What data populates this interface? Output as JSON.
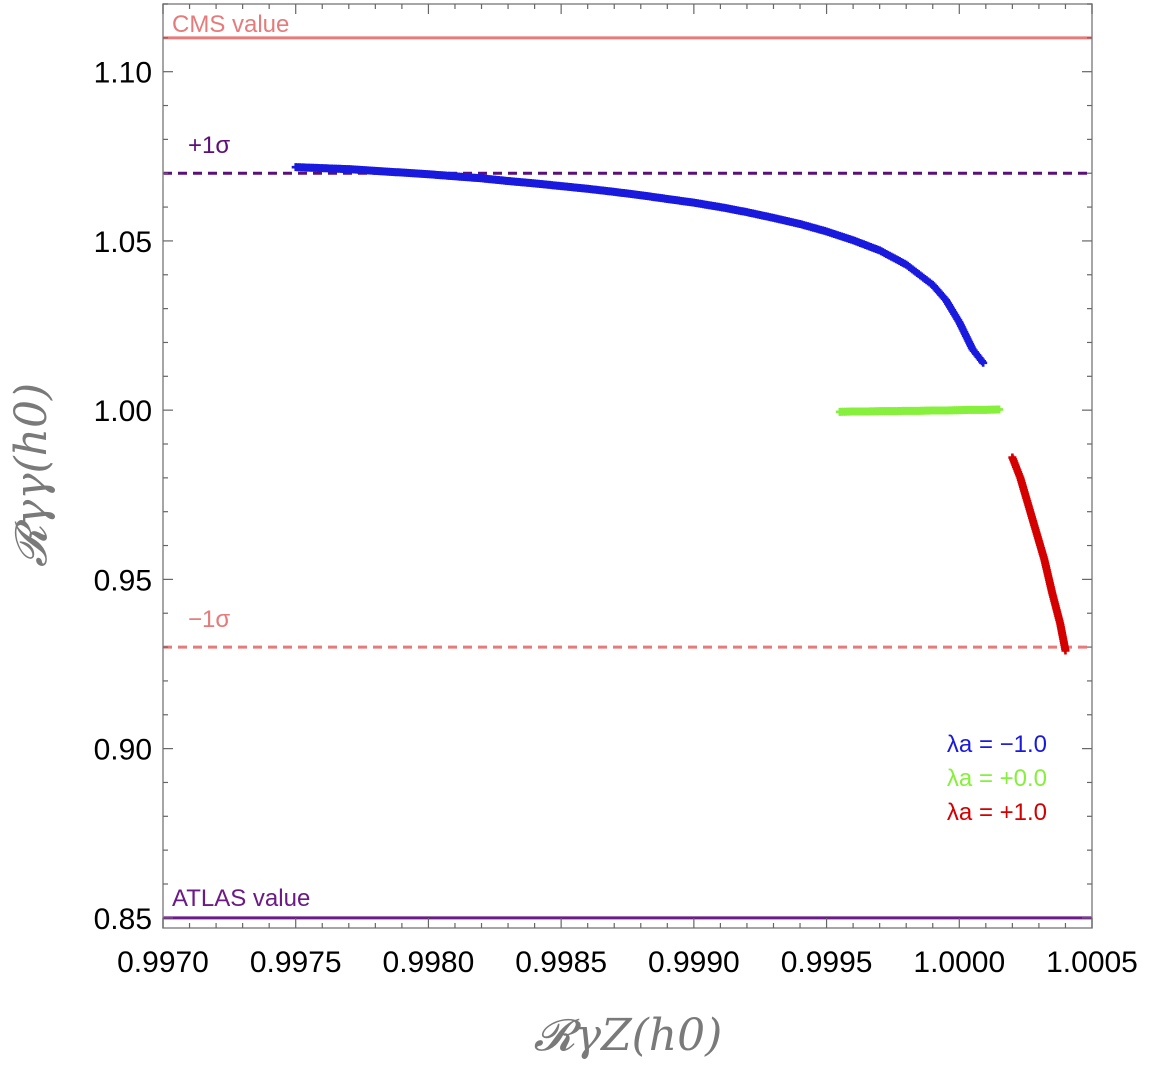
{
  "chart_data": {
    "type": "scatter",
    "xlabel": "𝓡γZ(h0)",
    "ylabel": "𝓡γγ(h0)",
    "xlim": [
      0.997,
      1.0005
    ],
    "ylim": [
      0.847,
      1.12
    ],
    "x_ticks": [
      "0.9970",
      "0.9975",
      "0.9980",
      "0.9985",
      "0.9990",
      "0.9995",
      "1.0000",
      "1.0005"
    ],
    "y_ticks": [
      "0.85",
      "0.90",
      "0.95",
      "1.00",
      "1.05",
      "1.10"
    ],
    "series": [
      {
        "name": "λa = −1.0",
        "color": "#1a1adf",
        "points": [
          [
            0.9975,
            1.0718
          ],
          [
            0.9976,
            1.0715
          ],
          [
            0.9977,
            1.0712
          ],
          [
            0.9978,
            1.0707
          ],
          [
            0.9979,
            1.0702
          ],
          [
            0.998,
            1.0697
          ],
          [
            0.9981,
            1.0691
          ],
          [
            0.9982,
            1.0685
          ],
          [
            0.9983,
            1.0677
          ],
          [
            0.9984,
            1.067
          ],
          [
            0.9985,
            1.0662
          ],
          [
            0.9986,
            1.0654
          ],
          [
            0.9987,
            1.0645
          ],
          [
            0.9988,
            1.0635
          ],
          [
            0.9989,
            1.0624
          ],
          [
            0.999,
            1.0613
          ],
          [
            0.9991,
            1.06
          ],
          [
            0.9992,
            1.0585
          ],
          [
            0.9993,
            1.0568
          ],
          [
            0.9994,
            1.055
          ],
          [
            0.9995,
            1.0528
          ],
          [
            0.9996,
            1.0502
          ],
          [
            0.9997,
            1.0472
          ],
          [
            0.9998,
            1.043
          ],
          [
            0.9999,
            1.037
          ],
          [
            0.99995,
            1.0325
          ],
          [
            1.0,
            1.026
          ],
          [
            1.00005,
            1.018
          ],
          [
            1.00009,
            1.014
          ]
        ]
      },
      {
        "name": "λa = +0.0",
        "color": "#86f03c",
        "points": [
          [
            0.99955,
            0.9995
          ],
          [
            0.9996,
            0.9996
          ],
          [
            0.99965,
            0.9996
          ],
          [
            0.9997,
            0.9997
          ],
          [
            0.99975,
            0.9997
          ],
          [
            0.9998,
            0.9998
          ],
          [
            0.99985,
            0.9998
          ],
          [
            0.9999,
            0.9999
          ],
          [
            0.99995,
            0.9999
          ],
          [
            1.0,
            1.0
          ],
          [
            1.00005,
            1.0001
          ],
          [
            1.0001,
            1.0001
          ],
          [
            1.00015,
            1.0002
          ]
        ]
      },
      {
        "name": "λa = +1.0",
        "color": "#d40000",
        "points": [
          [
            1.0002,
            0.986
          ],
          [
            1.00023,
            0.98
          ],
          [
            1.00026,
            0.972
          ],
          [
            1.00029,
            0.964
          ],
          [
            1.00032,
            0.956
          ],
          [
            1.00035,
            0.946
          ],
          [
            1.00038,
            0.937
          ],
          [
            1.0004,
            0.929
          ]
        ]
      }
    ],
    "reference_lines": [
      {
        "label": "CMS value",
        "y": 1.11,
        "color": "#e57b7b",
        "style": "solid"
      },
      {
        "label": "+1σ",
        "y": 1.07,
        "color": "#5a1078",
        "style": "dashed"
      },
      {
        "label": "−1σ",
        "y": 0.93,
        "color": "#e57b7b",
        "style": "dashed"
      },
      {
        "label": "ATLAS value",
        "y": 0.85,
        "color": "#6b1a86",
        "style": "solid"
      }
    ],
    "legend_placement": "bottom-right",
    "grid": false
  }
}
